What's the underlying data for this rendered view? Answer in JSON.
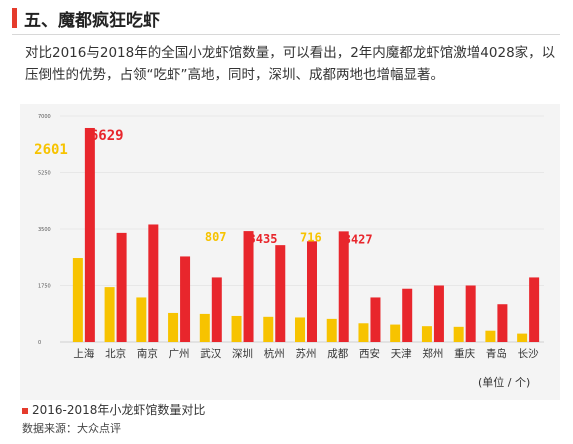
{
  "header": {
    "title": "五、魔都疯狂吃虾"
  },
  "intro": {
    "text": "对比2016与2018年的全国小龙虾馆数量，可以看出，2年内魔都龙虾馆激增4028家，以压倒性的优势，占领“吃虾”高地，同时，深圳、成都两地也增幅显著。"
  },
  "chart_data": {
    "type": "bar",
    "title": "2016-2018年小龙虾馆数量对比",
    "unit": "(单位 / 个)",
    "source": "数据来源：大众点评",
    "categories": [
      "上海",
      "北京",
      "南京",
      "广州",
      "武汉",
      "深圳",
      "杭州",
      "苏州",
      "成都",
      "西安",
      "天津",
      "郑州",
      "重庆",
      "青岛",
      "长沙"
    ],
    "series": [
      {
        "color": "#f7c300",
        "values": [
          2601,
          1700,
          1380,
          900,
          870,
          807,
          780,
          760,
          716,
          580,
          540,
          490,
          470,
          350,
          260
        ]
      },
      {
        "color": "#e8262c",
        "values": [
          6629,
          3380,
          3640,
          2650,
          2000,
          3435,
          3000,
          3120,
          3427,
          1380,
          1650,
          1750,
          1750,
          1170,
          2000
        ]
      }
    ],
    "ylim": [
      0,
      7000
    ],
    "yticks": [
      0,
      1750,
      3500,
      5250,
      7000
    ],
    "yticklabels": [
      "0",
      "1750",
      "3500",
      "5250",
      "7000"
    ],
    "data_labels": [
      {
        "series": 0,
        "index": 0,
        "text": "2601",
        "color": "#f7c300"
      },
      {
        "series": 1,
        "index": 0,
        "text": "6629",
        "color": "#e8262c"
      },
      {
        "series": 0,
        "index": 5,
        "text": "807",
        "color": "#f7c300"
      },
      {
        "series": 1,
        "index": 5,
        "text": "3435",
        "color": "#e8262c"
      },
      {
        "series": 0,
        "index": 8,
        "text": "716",
        "color": "#f7c300"
      },
      {
        "series": 1,
        "index": 8,
        "text": "3427",
        "color": "#e8262c"
      }
    ],
    "grid": true,
    "legend": "bottom-left"
  }
}
